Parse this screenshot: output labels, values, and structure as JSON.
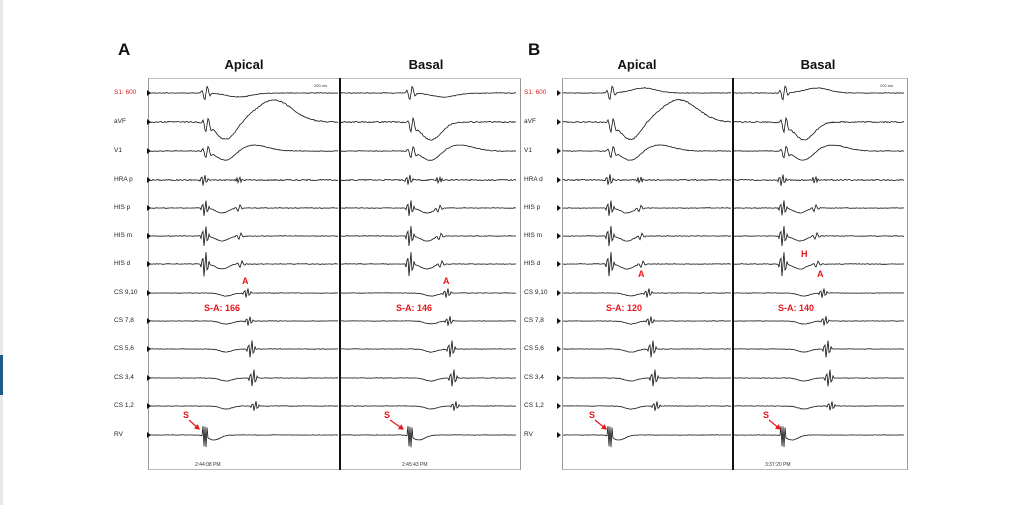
{
  "panels": [
    {
      "letter": "A",
      "columns": [
        "Apical",
        "Basal"
      ],
      "channels": [
        "S1: 600",
        "aVF",
        "V1",
        "HRA p",
        "HIS p",
        "HIS m",
        "HIS d",
        "CS 9,10",
        "CS 7,8",
        "CS 5,6",
        "CS 3,4",
        "CS 1,2",
        "RV"
      ],
      "scale_label": "200 ms",
      "timestamps": [
        "2:44:08 PM",
        "2:45:43 PM"
      ],
      "annotations": {
        "apical": {
          "atrial": "A",
          "interval": "S-A: 166",
          "stim": "S"
        },
        "basal": {
          "atrial": "A",
          "interval": "S-A: 146",
          "stim": "S"
        }
      }
    },
    {
      "letter": "B",
      "columns": [
        "Apical",
        "Basal"
      ],
      "channels": [
        "S1: 600",
        "aVF",
        "V1",
        "HRA d",
        "HIS p",
        "HIS m",
        "HIS d",
        "CS 9,10",
        "CS 7,8",
        "CS 5,6",
        "CS 3,4",
        "CS 1,2",
        "RV"
      ],
      "scale_label": "200 ms",
      "timestamps": [
        "3:37:20 PM"
      ],
      "annotations": {
        "apical": {
          "atrial": "A",
          "interval": "S-A: 120",
          "stim": "S"
        },
        "basal": {
          "his": "H",
          "atrial": "A",
          "interval": "S-A: 140",
          "stim": "S"
        }
      }
    }
  ],
  "colors": {
    "annotation": "#e8161b",
    "stim_label": "#d42020",
    "trace": "#111111"
  }
}
